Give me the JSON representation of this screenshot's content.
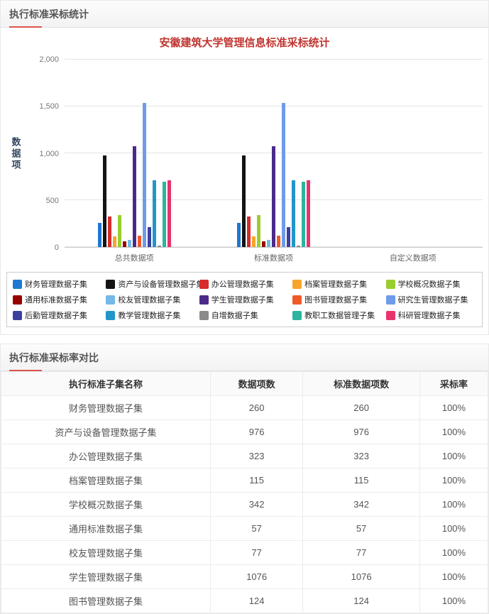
{
  "panels": {
    "chart_panel": {
      "header": "执行标准采标统计"
    },
    "table_panel": {
      "header": "执行标准采标率对比"
    }
  },
  "chart_data": {
    "type": "bar",
    "title": "安徽建筑大学管理信息标准采标统计",
    "ylabel": "数据项",
    "categories": [
      "总共数据项",
      "标准数据项",
      "自定义数据项"
    ],
    "ylim": [
      0,
      2000
    ],
    "yticks": [
      0,
      500,
      1000,
      1500,
      2000
    ],
    "ytick_labels": [
      "0",
      "500",
      "1,000",
      "1,500",
      "2,000"
    ],
    "grid": true,
    "legend_position": "bottom",
    "series": [
      {
        "name": "财务管理数据子集",
        "color": "#1e78d2",
        "values": [
          260,
          260,
          0
        ]
      },
      {
        "name": "资产与设备管理数据子集",
        "color": "#141414",
        "values": [
          976,
          976,
          0
        ]
      },
      {
        "name": "办公管理数据子集",
        "color": "#d62c2c",
        "values": [
          323,
          323,
          0
        ]
      },
      {
        "name": "档案管理数据子集",
        "color": "#f6a62d",
        "values": [
          115,
          115,
          0
        ]
      },
      {
        "name": "学校概况数据子集",
        "color": "#9acd32",
        "values": [
          342,
          342,
          0
        ]
      },
      {
        "name": "通用标准数据子集",
        "color": "#990000",
        "values": [
          57,
          57,
          0
        ]
      },
      {
        "name": "校友管理数据子集",
        "color": "#74b9e8",
        "values": [
          77,
          77,
          0
        ]
      },
      {
        "name": "学生管理数据子集",
        "color": "#4b2a8a",
        "values": [
          1076,
          1076,
          0
        ]
      },
      {
        "name": "图书管理数据子集",
        "color": "#f05a28",
        "values": [
          124,
          124,
          0
        ]
      },
      {
        "name": "研究生管理数据子集",
        "color": "#6f9bea",
        "values": [
          1535,
          1535,
          0
        ]
      },
      {
        "name": "后勤管理数据子集",
        "color": "#3b3f9e",
        "values": [
          210,
          210,
          0
        ]
      },
      {
        "name": "教学管理数据子集",
        "color": "#2196c9",
        "values": [
          710,
          710,
          0
        ]
      },
      {
        "name": "自增数据子集",
        "color": "#8a8a8a",
        "values": [
          15,
          15,
          0
        ]
      },
      {
        "name": "教职工数据管理子集",
        "color": "#2bb5a0",
        "values": [
          700,
          700,
          0
        ]
      },
      {
        "name": "科研管理数据子集",
        "color": "#e8336d",
        "values": [
          710,
          710,
          0
        ]
      }
    ]
  },
  "table": {
    "headers": [
      "执行标准子集名称",
      "数据项数",
      "标准数据项数",
      "采标率"
    ],
    "rows": [
      [
        "财务管理数据子集",
        "260",
        "260",
        "100%"
      ],
      [
        "资产与设备管理数据子集",
        "976",
        "976",
        "100%"
      ],
      [
        "办公管理数据子集",
        "323",
        "323",
        "100%"
      ],
      [
        "档案管理数据子集",
        "115",
        "115",
        "100%"
      ],
      [
        "学校概况数据子集",
        "342",
        "342",
        "100%"
      ],
      [
        "通用标准数据子集",
        "57",
        "57",
        "100%"
      ],
      [
        "校友管理数据子集",
        "77",
        "77",
        "100%"
      ],
      [
        "学生管理数据子集",
        "1076",
        "1076",
        "100%"
      ],
      [
        "图书管理数据子集",
        "124",
        "124",
        "100%"
      ]
    ]
  }
}
